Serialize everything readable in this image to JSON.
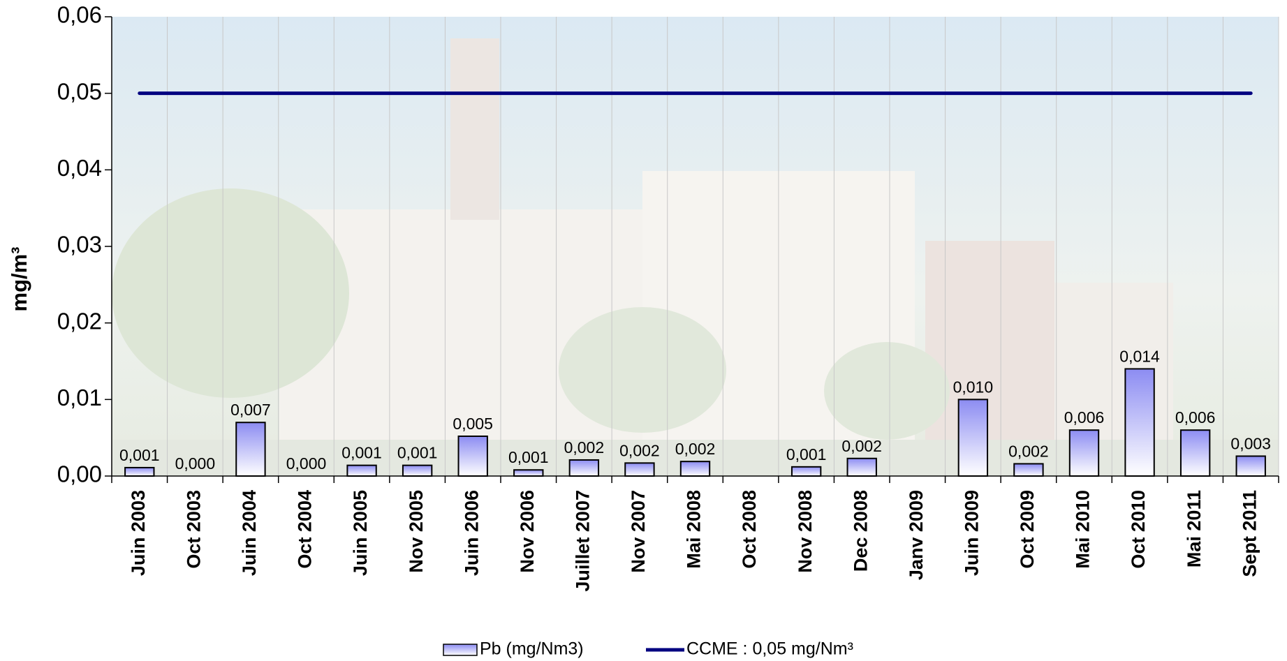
{
  "chart_data": {
    "type": "bar",
    "y_label": "mg/m³",
    "categories": [
      "Juin 2003",
      "Oct 2003",
      "Juin 2004",
      "Oct 2004",
      "Juin 2005",
      "Nov 2005",
      "Juin 2006",
      "Nov 2006",
      "Juillet 2007",
      "Nov 2007",
      "Mai 2008",
      "Oct 2008",
      "Nov 2008",
      "Dec 2008",
      "Janv 2009",
      "Juin 2009",
      "Oct 2009",
      "Mai 2010",
      "Oct 2010",
      "Mai 2011",
      "Sept 2011"
    ],
    "series": [
      {
        "name": "Pb (mg/Nm3)",
        "type": "bar",
        "color": "#8c8cf2",
        "values": [
          0.0011,
          0,
          0.007,
          0,
          0.0014,
          0.0014,
          0.0052,
          0.0008,
          0.0021,
          0.0017,
          0.0019,
          null,
          0.0012,
          0.0023,
          null,
          0.01,
          0.0016,
          0.006,
          0.014,
          0.006,
          0.0026
        ],
        "value_labels": [
          "0,001",
          "0,000",
          "0,007",
          "0,000",
          "0,001",
          "0,001",
          "0,005",
          "0,001",
          "0,002",
          "0,002",
          "0,002",
          null,
          "0,001",
          "0,002",
          null,
          "0,010",
          "0,002",
          "0,006",
          "0,014",
          "0,006",
          "0,003"
        ]
      },
      {
        "name": "CCME : 0,05 mg/Nm³",
        "type": "line",
        "color": "#000080",
        "values": [
          0.05,
          0.05,
          0.05,
          0.05,
          0.05,
          0.05,
          0.05,
          0.05,
          0.05,
          0.05,
          0.05,
          0.05,
          0.05,
          0.05,
          0.05,
          0.05,
          0.05,
          0.05,
          0.05,
          0.05,
          0.05
        ]
      }
    ],
    "ylim": [
      0,
      0.06
    ],
    "yticks": [
      {
        "value": 0,
        "label": "0,00"
      },
      {
        "value": 0.01,
        "label": "0,01"
      },
      {
        "value": 0.02,
        "label": "0,02"
      },
      {
        "value": 0.03,
        "label": "0,03"
      },
      {
        "value": 0.04,
        "label": "0,04"
      },
      {
        "value": 0.05,
        "label": "0,05"
      },
      {
        "value": 0.06,
        "label": "0,06"
      }
    ],
    "grid": true,
    "legend": "bottom"
  }
}
